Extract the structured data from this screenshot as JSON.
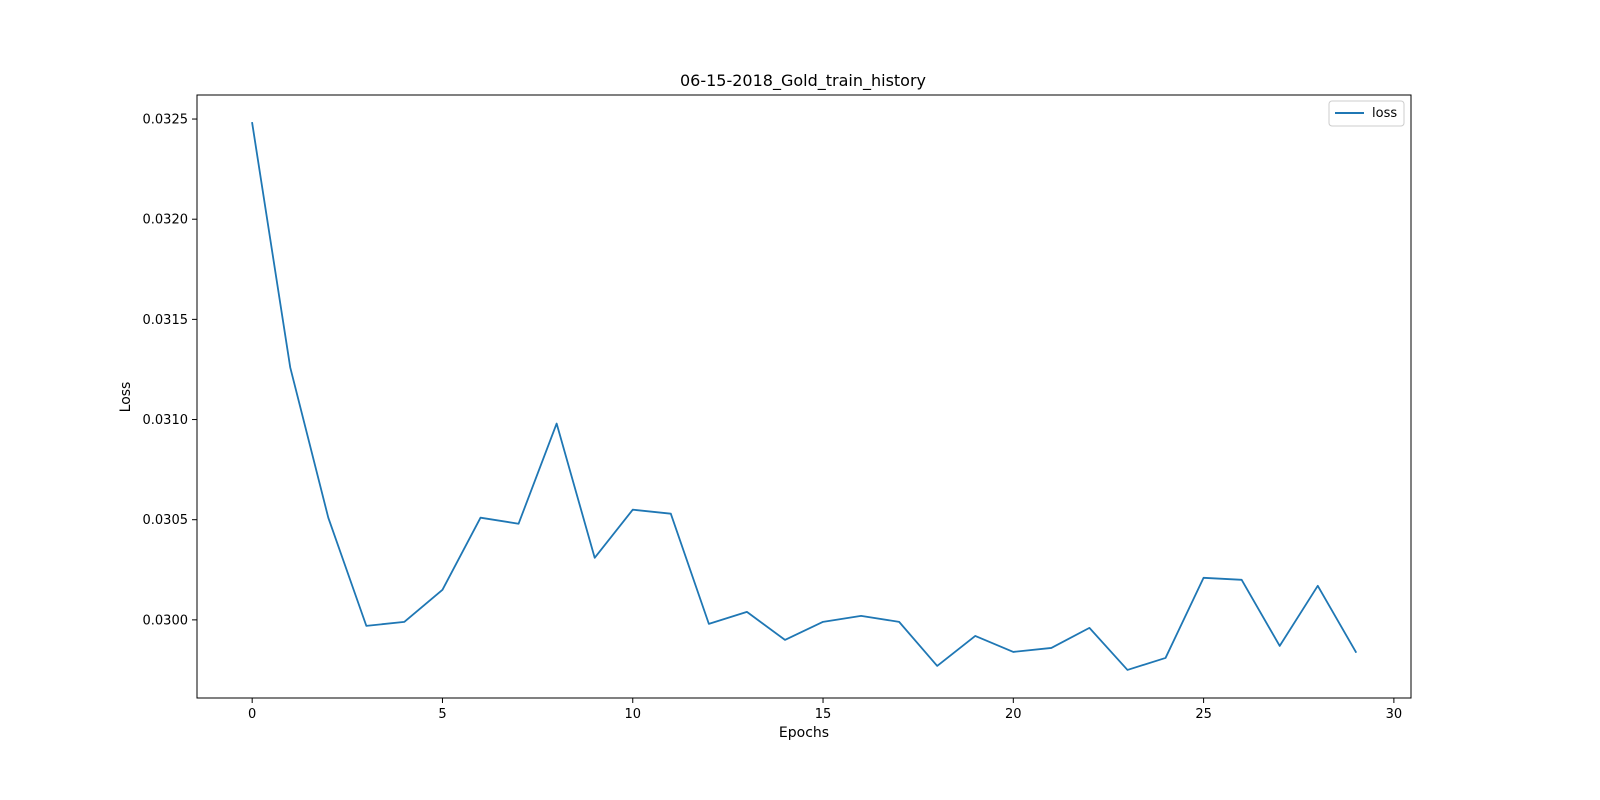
{
  "chart_data": {
    "type": "line",
    "title": "06-15-2018_Gold_train_history",
    "xlabel": "Epochs",
    "ylabel": "Loss",
    "xlim": [
      -1.45,
      30.45
    ],
    "ylim": [
      0.02961,
      0.03262
    ],
    "xticks": [
      0,
      5,
      10,
      15,
      20,
      25,
      30
    ],
    "yticks": [
      0.03,
      0.0305,
      0.031,
      0.0315,
      0.032,
      0.0325
    ],
    "ytick_labels": [
      "0.0300",
      "0.0305",
      "0.0310",
      "0.0315",
      "0.0320",
      "0.0325"
    ],
    "grid": false,
    "legend_position": "top-right",
    "x": [
      0,
      1,
      2,
      3,
      4,
      5,
      6,
      7,
      8,
      9,
      10,
      11,
      12,
      13,
      14,
      15,
      16,
      17,
      18,
      19,
      20,
      21,
      22,
      23,
      24,
      25,
      26,
      27,
      28,
      29
    ],
    "series": [
      {
        "name": "loss",
        "color": "#1f77b4",
        "values": [
          0.03248,
          0.03126,
          0.03051,
          0.02997,
          0.02999,
          0.03015,
          0.03051,
          0.03048,
          0.03098,
          0.03031,
          0.03055,
          0.03053,
          0.02998,
          0.03004,
          0.0299,
          0.02999,
          0.03002,
          0.02999,
          0.02977,
          0.02992,
          0.02984,
          0.02986,
          0.02996,
          0.02975,
          0.02981,
          0.03021,
          0.0302,
          0.02987,
          0.03017,
          0.02984
        ]
      }
    ]
  }
}
